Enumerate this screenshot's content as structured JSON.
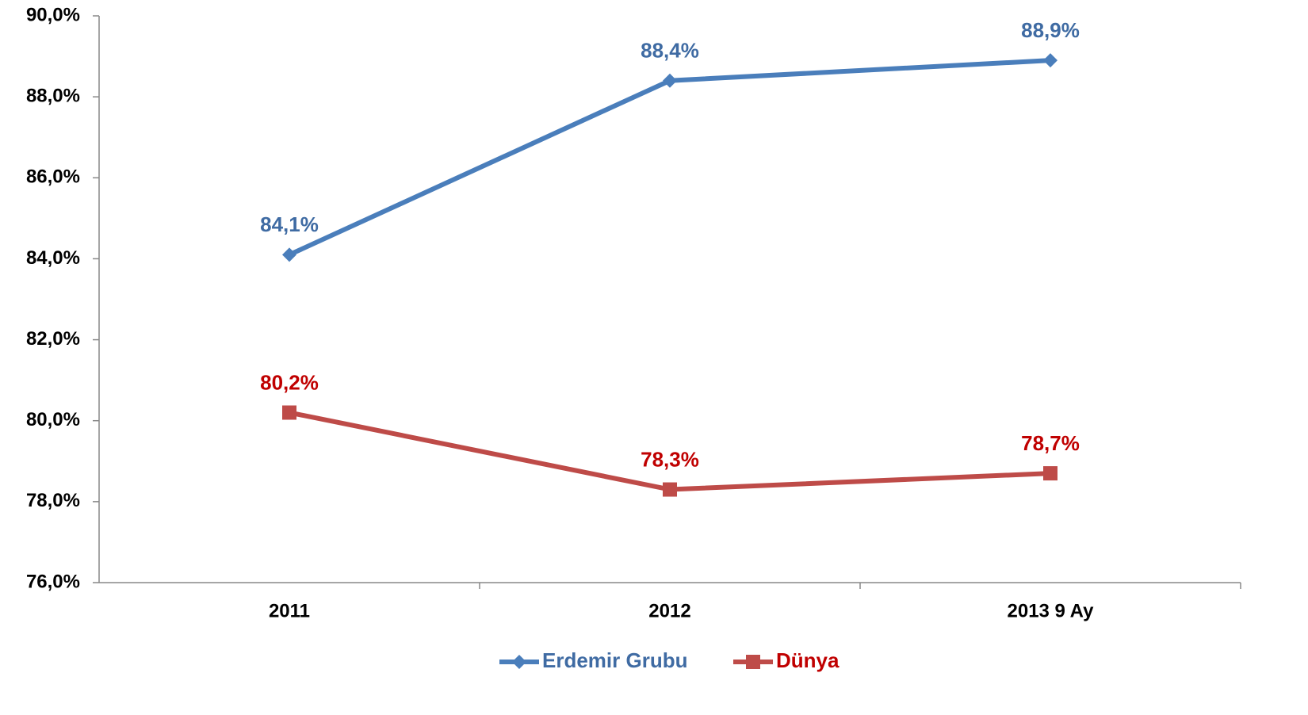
{
  "chart_data": {
    "type": "line",
    "categories": [
      "2011",
      "2012",
      "2013 9 Ay"
    ],
    "series": [
      {
        "name": "Erdemir Grubu",
        "color": "#4a7ebb",
        "label_color": "#3f6ba3",
        "marker": "diamond",
        "values": [
          84.1,
          88.4,
          88.9
        ],
        "value_labels": [
          "84,1%",
          "88,4%",
          "88,9%"
        ]
      },
      {
        "name": "Dünya",
        "color": "#be4b48",
        "label_color": "#c00000",
        "marker": "square",
        "values": [
          80.2,
          78.3,
          78.7
        ],
        "value_labels": [
          "80,2%",
          "78,3%",
          "78,7%"
        ]
      }
    ],
    "ylim": [
      76,
      90
    ],
    "yticks": [
      {
        "value": 76,
        "label": "76,0%"
      },
      {
        "value": 78,
        "label": "78,0%"
      },
      {
        "value": 80,
        "label": "80,0%"
      },
      {
        "value": 82,
        "label": "82,0%"
      },
      {
        "value": 84,
        "label": "84,0%"
      },
      {
        "value": 86,
        "label": "86,0%"
      },
      {
        "value": 88,
        "label": "88,0%"
      },
      {
        "value": 90,
        "label": "90,0%"
      }
    ],
    "grid": false,
    "legend": "bottom"
  }
}
